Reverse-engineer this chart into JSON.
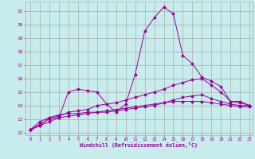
{
  "xlabel": "Windchill (Refroidissement éolien,°C)",
  "xlim": [
    -0.5,
    23.3
  ],
  "ylim": [
    11.8,
    21.7
  ],
  "xticks": [
    0,
    1,
    2,
    3,
    4,
    5,
    6,
    7,
    8,
    9,
    10,
    11,
    12,
    13,
    14,
    15,
    16,
    17,
    18,
    19,
    20,
    21,
    22,
    23
  ],
  "yticks": [
    12,
    13,
    14,
    15,
    16,
    17,
    18,
    19,
    20,
    21
  ],
  "bg_color": "#c8ebeb",
  "grid_color": "#a0a0a0",
  "line_color": "#990099",
  "line1_x": [
    0,
    1,
    2,
    3,
    4,
    5,
    6,
    7,
    8,
    9,
    10,
    11,
    12,
    13,
    14,
    15,
    16,
    17,
    18,
    19,
    20,
    21,
    22,
    23
  ],
  "line1_y": [
    12.2,
    12.5,
    12.8,
    13.1,
    15.0,
    15.2,
    15.1,
    15.0,
    14.1,
    13.5,
    14.1,
    16.3,
    19.5,
    20.5,
    21.3,
    20.8,
    17.7,
    17.1,
    16.1,
    15.8,
    15.4,
    14.3,
    14.3,
    14.0
  ],
  "line2_x": [
    0,
    1,
    2,
    3,
    4,
    5,
    6,
    7,
    8,
    9,
    10,
    11,
    12,
    13,
    14,
    15,
    16,
    17,
    18,
    19,
    20,
    21,
    22,
    23
  ],
  "line2_y": [
    12.2,
    12.5,
    13.1,
    13.2,
    13.5,
    13.6,
    13.7,
    14.0,
    14.1,
    14.2,
    14.4,
    14.6,
    14.8,
    15.0,
    15.2,
    15.5,
    15.7,
    15.9,
    16.0,
    15.5,
    15.0,
    14.3,
    14.2,
    14.0
  ],
  "line3_x": [
    0,
    1,
    2,
    3,
    4,
    5,
    6,
    7,
    8,
    9,
    10,
    11,
    12,
    13,
    14,
    15,
    16,
    17,
    18,
    19,
    20,
    21,
    22,
    23
  ],
  "line3_y": [
    12.2,
    12.6,
    13.0,
    13.1,
    13.2,
    13.3,
    13.4,
    13.5,
    13.5,
    13.6,
    13.7,
    13.8,
    13.9,
    14.0,
    14.2,
    14.4,
    14.6,
    14.7,
    14.8,
    14.5,
    14.3,
    14.1,
    14.0,
    14.0
  ],
  "line4_x": [
    0,
    1,
    2,
    3,
    4,
    5,
    6,
    7,
    8,
    9,
    10,
    11,
    12,
    13,
    14,
    15,
    16,
    17,
    18,
    19,
    20,
    21,
    22,
    23
  ],
  "line4_y": [
    12.2,
    12.8,
    13.1,
    13.3,
    13.4,
    13.4,
    13.5,
    13.5,
    13.6,
    13.7,
    13.8,
    13.9,
    14.0,
    14.1,
    14.2,
    14.3,
    14.3,
    14.3,
    14.3,
    14.2,
    14.1,
    14.0,
    13.9,
    13.9
  ]
}
